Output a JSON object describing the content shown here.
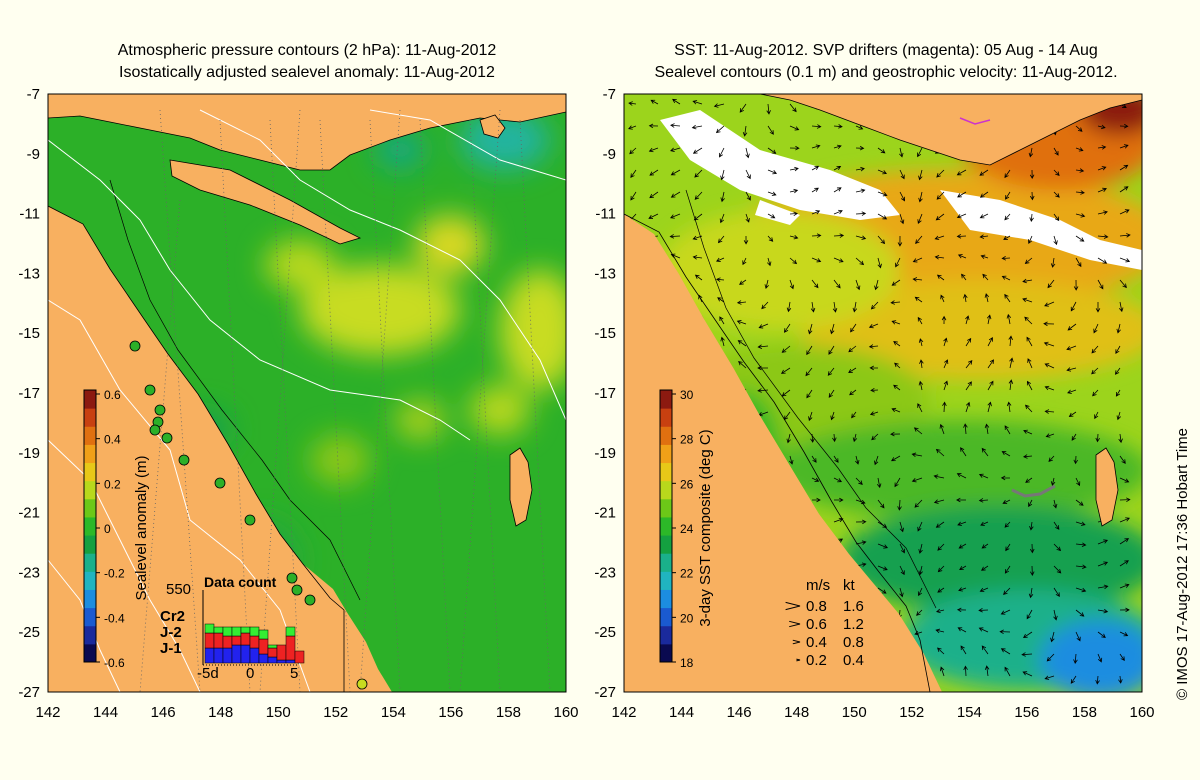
{
  "left_panel": {
    "title_line1": "Atmospheric pressure contours (2 hPa): 11-Aug-2012",
    "title_line2": "Isostatically adjusted sealevel anomaly: 11-Aug-2012",
    "colorbar": {
      "label": "Sealevel anomaly (m)",
      "ticks": [
        "0.6",
        "0.4",
        "0.2",
        "0",
        "-0.2",
        "-0.4",
        "-0.6"
      ],
      "colors": [
        "#0a0a50",
        "#1a2a9c",
        "#1a5ad0",
        "#1c8de0",
        "#20b4c0",
        "#1ab08a",
        "#14a040",
        "#2cb828",
        "#6cc818",
        "#b8d81c",
        "#e8c818",
        "#f0a018",
        "#e07010",
        "#c84010",
        "#8c1a10"
      ]
    },
    "data_count": {
      "title": "Data count",
      "max_label": "550",
      "series_labels": [
        "Cr2",
        "J-2",
        "J-1"
      ],
      "series_colors": [
        "#33ee33",
        "#ee2222",
        "#2222ee"
      ],
      "x_ticks": [
        "-5d",
        "0",
        "5"
      ],
      "bars": [
        {
          "j1": 0.25,
          "j2": 0.25,
          "cr2": 0.15
        },
        {
          "j1": 0.25,
          "j2": 0.25,
          "cr2": 0.1
        },
        {
          "j1": 0.25,
          "j2": 0.2,
          "cr2": 0.15
        },
        {
          "j1": 0.3,
          "j2": 0.15,
          "cr2": 0.15
        },
        {
          "j1": 0.3,
          "j2": 0.2,
          "cr2": 0.1
        },
        {
          "j1": 0.25,
          "j2": 0.2,
          "cr2": 0.15
        },
        {
          "j1": 0.15,
          "j2": 0.25,
          "cr2": 0.15
        },
        {
          "j1": 0.1,
          "j2": 0.15,
          "cr2": 0.05
        },
        {
          "j1": 0.05,
          "j2": 0.25,
          "cr2": 0.0
        },
        {
          "j1": 0.05,
          "j2": 0.4,
          "cr2": 0.15
        },
        {
          "j1": 0.0,
          "j2": 0.2,
          "cr2": 0.0
        }
      ]
    }
  },
  "right_panel": {
    "title_line1": "SST: 11-Aug-2012. SVP drifters (magenta): 05 Aug - 14 Aug",
    "title_line2": "Sealevel contours (0.1 m) and geostrophic velocity: 11-Aug-2012.",
    "colorbar": {
      "label": "3-day SST composite (deg C)",
      "ticks": [
        "30",
        "28",
        "26",
        "24",
        "22",
        "20",
        "18"
      ],
      "colors": [
        "#0a0a50",
        "#1a2a9c",
        "#1a5ad0",
        "#1c8de0",
        "#20b4c0",
        "#1ab08a",
        "#14a040",
        "#2cb828",
        "#6cc818",
        "#b8d81c",
        "#e8c818",
        "#f0a018",
        "#e07010",
        "#c84010",
        "#8c1a10"
      ]
    },
    "velocity_legend": {
      "header_ms": "m/s",
      "header_kt": "kt",
      "rows": [
        {
          "ms": "0.8",
          "kt": "1.6",
          "speed": 0.8
        },
        {
          "ms": "0.6",
          "kt": "1.2",
          "speed": 0.6
        },
        {
          "ms": "0.4",
          "kt": "0.8",
          "speed": 0.4
        },
        {
          "ms": "0.2",
          "kt": "0.4",
          "speed": 0.2
        }
      ]
    }
  },
  "axes": {
    "lon_ticks": [
      "142",
      "144",
      "146",
      "148",
      "150",
      "152",
      "154",
      "156",
      "158",
      "160"
    ],
    "lat_ticks": [
      "-7",
      "-9",
      "-11",
      "-13",
      "-15",
      "-17",
      "-19",
      "-21",
      "-23",
      "-25",
      "-27"
    ],
    "lon_range": [
      142,
      160
    ],
    "lat_range": [
      -7,
      -27
    ]
  },
  "colors": {
    "land": "#f8b060",
    "background": "#fffff0",
    "drifter": "#cc33cc"
  },
  "credit": "© IMOS 17-Aug-2012 17:36 Hobart Time"
}
